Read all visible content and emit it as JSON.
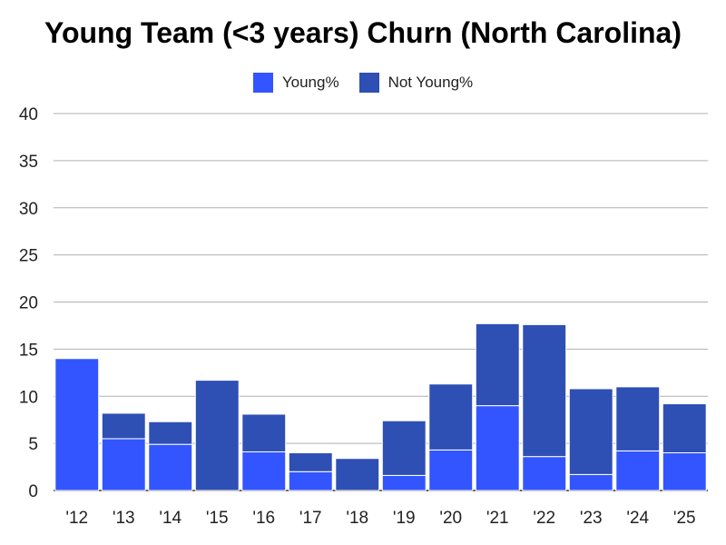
{
  "chart_data": {
    "type": "bar",
    "stacked": true,
    "title": "Young Team (<3 years) Churn (North Carolina)",
    "categories": [
      "'12",
      "'13",
      "'14",
      "'15",
      "'16",
      "'17",
      "'18",
      "'19",
      "'20",
      "'21",
      "'22",
      "'23",
      "'24",
      "'25"
    ],
    "series": [
      {
        "name": "Young%",
        "color": "#3355ff",
        "values": [
          14.0,
          5.5,
          4.9,
          0.0,
          4.1,
          2.0,
          0.0,
          1.6,
          4.3,
          9.0,
          3.6,
          1.7,
          4.2,
          4.0
        ]
      },
      {
        "name": "Not Young%",
        "color": "#2e4fb4",
        "values": [
          0.0,
          2.7,
          2.4,
          11.7,
          4.0,
          2.0,
          3.4,
          5.8,
          7.0,
          8.7,
          14.0,
          9.1,
          6.8,
          5.2
        ]
      }
    ],
    "ylim": [
      0,
      40
    ],
    "yticks": [
      0,
      5,
      10,
      15,
      20,
      25,
      30,
      35,
      40
    ],
    "grid": true,
    "legend_position": "top"
  }
}
